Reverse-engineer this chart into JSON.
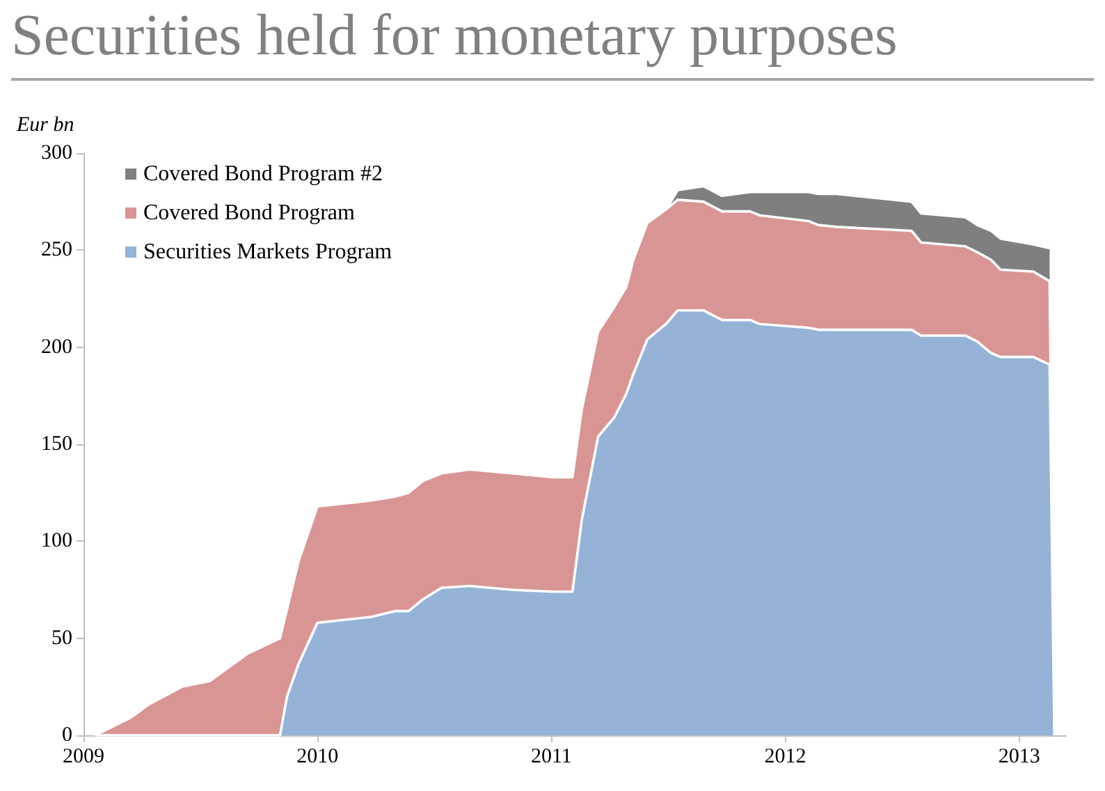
{
  "chart_data": {
    "type": "area",
    "title": "Securities held for monetary purposes",
    "ylabel": "Eur bn",
    "stacked": true,
    "legend": "top left",
    "grid": false,
    "x": [
      2009.05,
      2009.2,
      2009.28,
      2009.42,
      2009.54,
      2009.7,
      2009.84,
      2009.87,
      2009.92,
      2010.0,
      2010.23,
      2010.33,
      2010.39,
      2010.45,
      2010.53,
      2010.65,
      2010.83,
      2011.01,
      2011.09,
      2011.13,
      2011.2,
      2011.27,
      2011.32,
      2011.35,
      2011.41,
      2011.49,
      2011.54,
      2011.65,
      2011.73,
      2011.85,
      2011.89,
      2012.1,
      2012.14,
      2012.22,
      2012.54,
      2012.58,
      2012.77,
      2012.82,
      2012.88,
      2012.92,
      2013.06,
      2013.13,
      2013.15
    ],
    "series": [
      {
        "name": "Securities Markets Program",
        "color": "#95b3d7",
        "values": [
          0,
          0,
          0,
          0,
          0,
          0,
          0,
          20,
          37,
          58,
          61,
          64,
          64,
          70,
          76,
          77,
          75,
          74,
          74,
          111,
          154,
          164,
          176,
          186,
          204,
          212,
          219,
          219,
          214,
          214,
          212,
          210,
          209,
          209,
          209,
          206,
          206,
          203,
          197,
          195,
          195,
          191,
          0
        ]
      },
      {
        "name": "Covered Bond Program",
        "color": "#d99594",
        "values": [
          0,
          9,
          16,
          25,
          28,
          42,
          50,
          45,
          53,
          60,
          60,
          59,
          61,
          61,
          59,
          60,
          60,
          59,
          59,
          57,
          54,
          57,
          55,
          59,
          60,
          59,
          57,
          56,
          56,
          56,
          56,
          55,
          54,
          53,
          51,
          48,
          46,
          46,
          48,
          45,
          44,
          43,
          0
        ]
      },
      {
        "name": "Covered Bond Program #2",
        "color": "#7f7f7f",
        "values": [
          null,
          null,
          null,
          null,
          null,
          null,
          null,
          null,
          null,
          null,
          null,
          null,
          null,
          null,
          null,
          null,
          null,
          null,
          null,
          null,
          null,
          null,
          null,
          null,
          null,
          0,
          5,
          8,
          8,
          10,
          12,
          15,
          16,
          17,
          15,
          15,
          15,
          14,
          15,
          16,
          14,
          17,
          null
        ]
      }
    ],
    "xlim": [
      2009,
      2013.2
    ],
    "xticks": [
      2009,
      2010,
      2011,
      2012,
      2013
    ],
    "ylim": [
      0,
      300
    ],
    "yticks": [
      0,
      50,
      100,
      150,
      200,
      250,
      300
    ]
  }
}
